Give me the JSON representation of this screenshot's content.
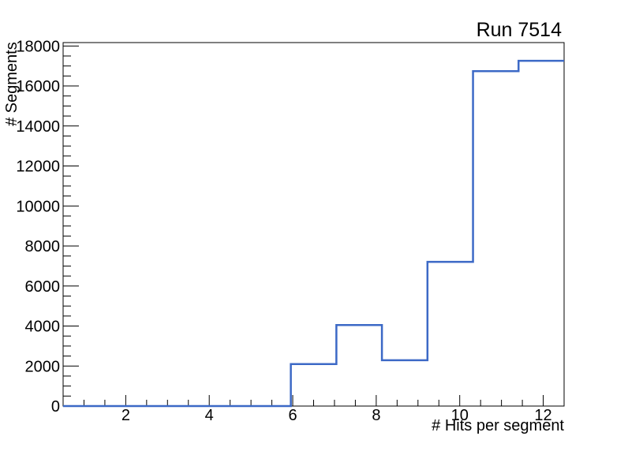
{
  "window": {
    "background": "#ffffff"
  },
  "chart_data": {
    "type": "line",
    "subtype": "step-histogram",
    "title": "Run 7514",
    "xlabel": "# Hits per segment",
    "ylabel": "# Segments",
    "xlim": [
      0.5,
      12.5
    ],
    "ylim": [
      0,
      18170
    ],
    "grid": false,
    "legend": false,
    "line_color": "#3c69c6",
    "axis_color": "#000000",
    "text_color": "#000000",
    "n_bins": 11,
    "bin_edges": [
      0.5,
      1.5909,
      2.6818,
      3.7727,
      4.8636,
      5.9545,
      7.0455,
      8.1364,
      9.2273,
      10.3182,
      11.4091,
      12.5
    ],
    "values": [
      0,
      0,
      0,
      0,
      0,
      2100,
      4050,
      2290,
      7210,
      16740,
      17260
    ],
    "x_ticks": {
      "major_values": [
        2,
        4,
        6,
        8,
        10,
        12
      ],
      "major_labels": [
        "2",
        "4",
        "6",
        "8",
        "10",
        "12"
      ],
      "minor_step": 0.5
    },
    "y_ticks": {
      "major_values": [
        0,
        2000,
        4000,
        6000,
        8000,
        10000,
        12000,
        14000,
        16000,
        18000
      ],
      "major_labels": [
        "0",
        "2000",
        "4000",
        "6000",
        "8000",
        "10000",
        "12000",
        "14000",
        "16000",
        "18000"
      ],
      "minor_step": 500
    }
  }
}
